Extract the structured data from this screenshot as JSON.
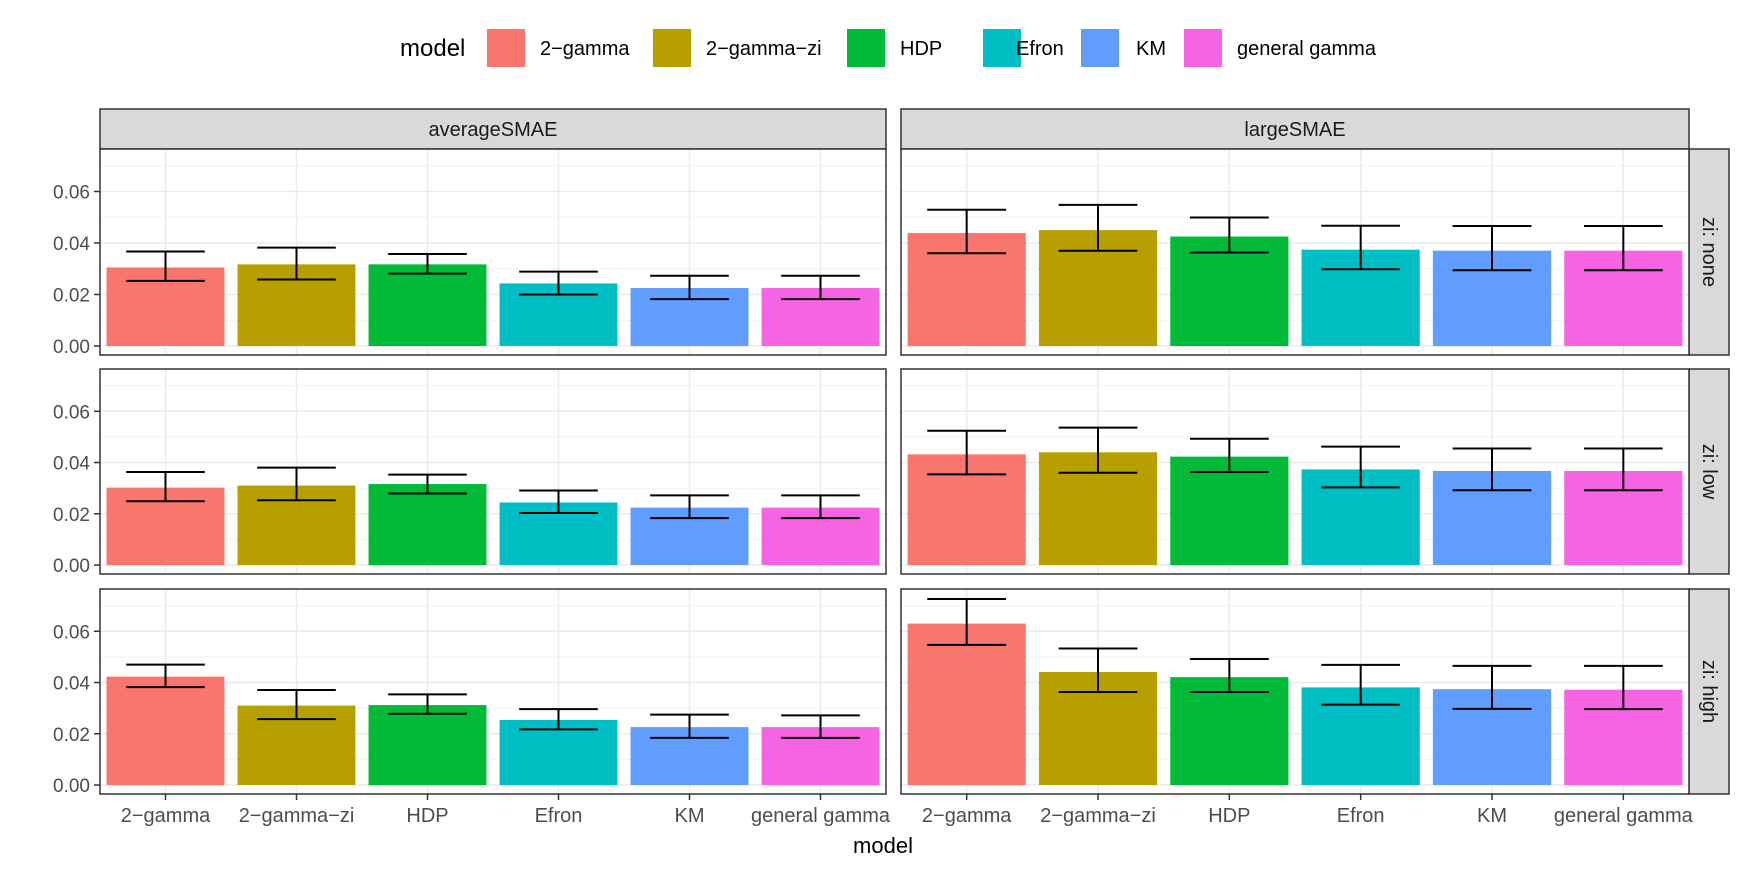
{
  "chart_data": {
    "type": "bar",
    "xlabel": "model",
    "ylabel": "",
    "ylim": [
      -0.0035,
      0.0765
    ],
    "yticks": [
      0.0,
      0.02,
      0.04,
      0.06
    ],
    "ytick_labels": [
      "0.00",
      "0.02",
      "0.04",
      "0.06"
    ],
    "grid": true,
    "legend": {
      "title": "model",
      "position": "top",
      "entries": [
        "2−gamma",
        "2−gamma−zi",
        "HDP",
        "Efron",
        "KM",
        "general gamma"
      ]
    },
    "categories": [
      "2−gamma",
      "2−gamma−zi",
      "HDP",
      "Efron",
      "KM",
      "general gamma"
    ],
    "colors": [
      "#F8766D",
      "#B79F00",
      "#00BA38",
      "#00BFC4",
      "#619CFF",
      "#F564E3"
    ],
    "columns": [
      "averageSMAE",
      "largeSMAE"
    ],
    "rows": [
      "zi: none",
      "zi: low",
      "zi: high"
    ],
    "panels": [
      {
        "column": "averageSMAE",
        "row": "zi: none",
        "values": [
          0.0305,
          0.0317,
          0.0317,
          0.0243,
          0.0225,
          0.0225
        ],
        "err_low": [
          0.0253,
          0.0258,
          0.0281,
          0.02,
          0.0182,
          0.0182
        ],
        "err_high": [
          0.0367,
          0.0382,
          0.0357,
          0.0289,
          0.0273,
          0.0273
        ]
      },
      {
        "column": "largeSMAE",
        "row": "zi: none",
        "values": [
          0.0439,
          0.045,
          0.0425,
          0.0374,
          0.037,
          0.037
        ],
        "err_low": [
          0.036,
          0.037,
          0.0363,
          0.0298,
          0.0294,
          0.0294
        ],
        "err_high": [
          0.0529,
          0.0548,
          0.0499,
          0.0467,
          0.0466,
          0.0466
        ]
      },
      {
        "column": "averageSMAE",
        "row": "zi: low",
        "values": [
          0.0302,
          0.031,
          0.0316,
          0.0244,
          0.0224,
          0.0224
        ],
        "err_low": [
          0.0249,
          0.0253,
          0.0279,
          0.0203,
          0.0183,
          0.0183
        ],
        "err_high": [
          0.0363,
          0.038,
          0.0353,
          0.0291,
          0.0272,
          0.0272
        ]
      },
      {
        "column": "largeSMAE",
        "row": "zi: low",
        "values": [
          0.0432,
          0.044,
          0.0423,
          0.0373,
          0.0367,
          0.0367
        ],
        "err_low": [
          0.0354,
          0.036,
          0.0363,
          0.0303,
          0.0292,
          0.0292
        ],
        "err_high": [
          0.0524,
          0.0536,
          0.0493,
          0.0462,
          0.0455,
          0.0455
        ]
      },
      {
        "column": "averageSMAE",
        "row": "zi: high",
        "values": [
          0.0423,
          0.031,
          0.0312,
          0.0254,
          0.0226,
          0.0226
        ],
        "err_low": [
          0.0382,
          0.0257,
          0.0278,
          0.0217,
          0.0184,
          0.0184
        ],
        "err_high": [
          0.047,
          0.0371,
          0.0354,
          0.0296,
          0.0275,
          0.0272
        ]
      },
      {
        "column": "largeSMAE",
        "row": "zi: high",
        "values": [
          0.063,
          0.0441,
          0.0421,
          0.0381,
          0.0374,
          0.0372
        ],
        "err_low": [
          0.0547,
          0.0363,
          0.0363,
          0.0314,
          0.0297,
          0.0296
        ],
        "err_high": [
          0.0726,
          0.0533,
          0.0492,
          0.0469,
          0.0465,
          0.0465
        ]
      }
    ]
  }
}
